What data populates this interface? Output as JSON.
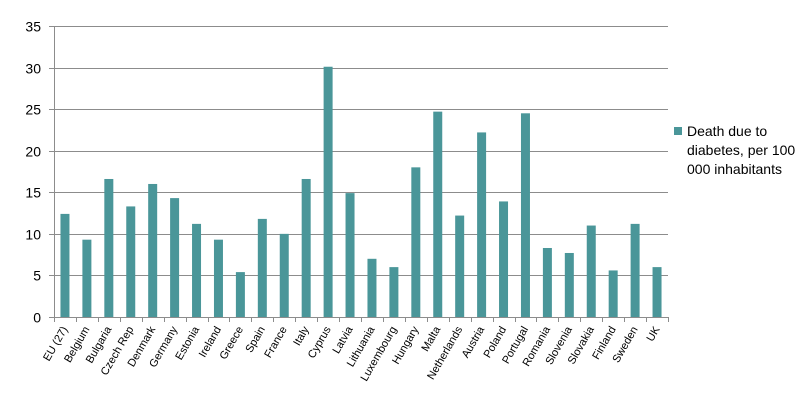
{
  "chart_data": {
    "type": "bar",
    "categories": [
      "EU (27)",
      "Belgium",
      "Bulgaria",
      "Czech Rep",
      "Denmark",
      "Germany",
      "Estonia",
      "Ireland",
      "Greece",
      "Spain",
      "France",
      "Italy",
      "Cyprus",
      "Latvia",
      "Lithuania",
      "Luxembourg",
      "Hungary",
      "Malta",
      "Netherlands",
      "Austria",
      "Poland",
      "Portugal",
      "Romania",
      "Slovenia",
      "Slovakia",
      "Finland",
      "Sweden",
      "UK"
    ],
    "series": [
      {
        "name": "Death due to diabetes, per 100 000 inhabitants",
        "values": [
          12.4,
          9.3,
          16.6,
          13.3,
          16.0,
          14.3,
          11.2,
          9.3,
          5.4,
          11.8,
          10.0,
          16.6,
          30.1,
          14.9,
          7.0,
          6.0,
          18.0,
          24.7,
          12.2,
          22.2,
          13.9,
          24.5,
          8.3,
          7.7,
          11.0,
          5.6,
          11.2,
          6.0
        ]
      }
    ],
    "ylim": [
      0,
      35
    ],
    "yticks": [
      0,
      5,
      10,
      15,
      20,
      25,
      30,
      35
    ],
    "grid": true,
    "legend_position": "right",
    "bar_color": "#4a9699",
    "grid_color": "#8c8c8c"
  }
}
